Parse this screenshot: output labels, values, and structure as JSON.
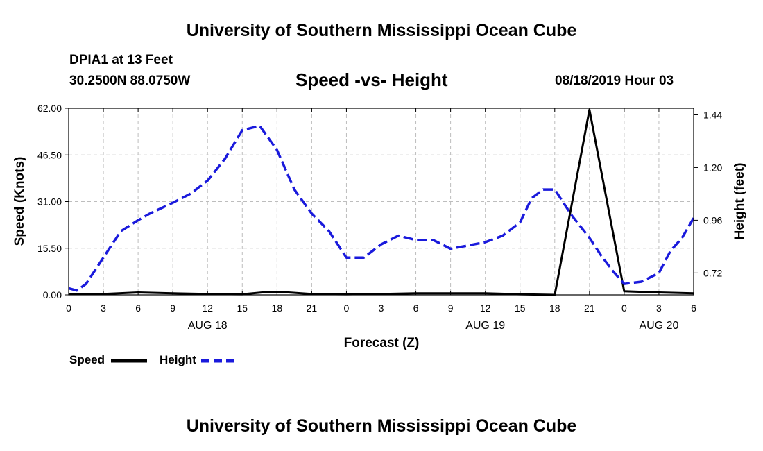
{
  "page": {
    "top_title": "University of Southern Mississippi Ocean Cube",
    "bottom_title": "University of Southern Mississippi Ocean Cube",
    "station_name": "DPIA1 at 13 Feet",
    "station_coords": "30.2500N 88.0750W",
    "chart_title": "Speed -vs- Height",
    "run_time": "08/18/2019 Hour 03"
  },
  "chart_data": {
    "type": "line",
    "title": "Speed -vs- Height",
    "xlabel": "Forecast (Z)",
    "ylabel": "Speed (Knots)",
    "y2label": "Height (feet)",
    "x_range": [
      0,
      54
    ],
    "ylim": [
      0,
      62
    ],
    "y2lim": [
      0.62,
      1.47
    ],
    "y_ticks": [
      0,
      15.5,
      31,
      46.5,
      62
    ],
    "y_tick_labels": [
      "0.00",
      "15.50",
      "31.00",
      "46.50",
      "62.00"
    ],
    "y2_ticks": [
      0.72,
      0.96,
      1.2,
      1.44
    ],
    "y2_tick_labels": [
      "0.72",
      "0.96",
      "1.20",
      "1.44"
    ],
    "x_ticks": [
      0,
      3,
      6,
      9,
      12,
      15,
      18,
      21,
      24,
      27,
      30,
      33,
      36,
      39,
      42,
      45,
      48,
      51,
      54
    ],
    "x_tick_labels": [
      "0",
      "3",
      "6",
      "9",
      "12",
      "15",
      "18",
      "21",
      "0",
      "3",
      "6",
      "9",
      "12",
      "15",
      "18",
      "21",
      "0",
      "3",
      "6"
    ],
    "day_labels": [
      {
        "x": 12,
        "label": "AUG 18"
      },
      {
        "x": 36,
        "label": "AUG 19"
      },
      {
        "x": 51,
        "label": "AUG 20"
      }
    ],
    "grid": true,
    "legend_position": "bottom-left",
    "series": [
      {
        "name": "Speed",
        "axis": "left",
        "color": "#000000",
        "style": "solid",
        "x": [
          0,
          3,
          6,
          9,
          12,
          15,
          17,
          18,
          19,
          20.1,
          21,
          24,
          27,
          30,
          33,
          36,
          39,
          42,
          45,
          48,
          51,
          54
        ],
        "values": [
          0.3,
          0.3,
          0.8,
          0.5,
          0.3,
          0.2,
          0.9,
          1.0,
          0.8,
          0.5,
          0.3,
          0.2,
          0.3,
          0.5,
          0.5,
          0.5,
          0.2,
          0.0,
          61.5,
          1.2,
          0.8,
          0.5
        ]
      },
      {
        "name": "Height",
        "axis": "right",
        "color": "#1a1adc",
        "style": "dashed",
        "x": [
          0,
          0.7,
          1.5,
          3,
          4.5,
          6,
          7,
          9,
          10.5,
          12,
          13.5,
          15,
          16.5,
          18,
          19.5,
          21,
          22.5,
          24,
          25.5,
          27,
          28.5,
          30,
          31.5,
          33,
          34,
          36,
          37.5,
          39,
          40,
          41,
          42,
          43.5,
          45,
          46,
          47,
          48,
          49.5,
          51,
          52,
          53,
          54
        ],
        "values": [
          0.65,
          0.64,
          0.67,
          0.79,
          0.91,
          0.96,
          0.99,
          1.04,
          1.08,
          1.14,
          1.24,
          1.37,
          1.39,
          1.28,
          1.1,
          0.99,
          0.91,
          0.79,
          0.79,
          0.85,
          0.89,
          0.87,
          0.87,
          0.83,
          0.84,
          0.86,
          0.89,
          0.95,
          1.06,
          1.1,
          1.1,
          0.98,
          0.88,
          0.8,
          0.73,
          0.67,
          0.68,
          0.72,
          0.82,
          0.88,
          0.97
        ]
      }
    ]
  }
}
